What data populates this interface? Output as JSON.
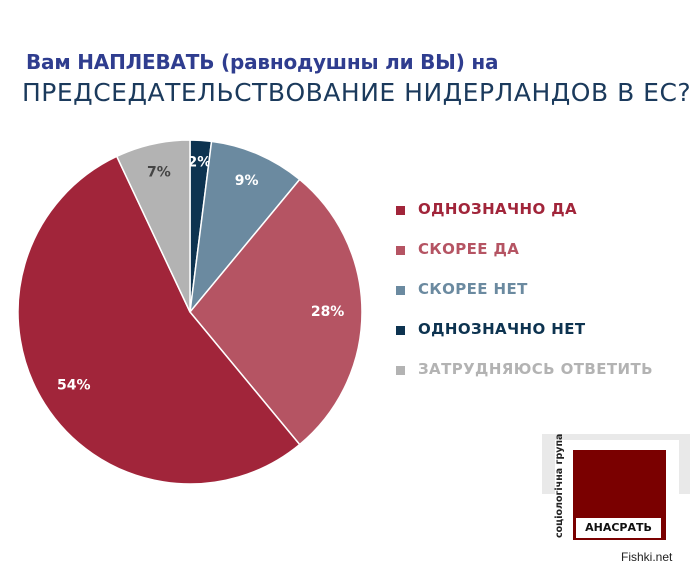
{
  "colors": {
    "definitely_yes": "#a1253a",
    "rather_yes": "#b55463",
    "rather_no": "#6b8aa0",
    "definitely_no": "#0d3350",
    "hard_to_say": "#b3b3b3",
    "label_light": "#ffffff",
    "label_dark": "#444444",
    "logo": "#7a0000"
  },
  "chart_data": {
    "type": "pie",
    "title": "Вам НАПЛЕВАТЬ (равнодушны ли ВЫ) на",
    "subtitle": "ПРЕДСЕДАТЕЛЬСТВОВАНИЕ НИДЕРЛАНДОВ В ЕС?",
    "legend_position": "right",
    "start": "top",
    "direction": "clockwise",
    "slices": [
      {
        "label": "ОДНОЗНАЧНО НЕТ",
        "value": 2,
        "display": "2%",
        "color": "#0d3350"
      },
      {
        "label": "СКОРЕЕ НЕТ",
        "value": 9,
        "display": "9%",
        "color": "#6b8aa0"
      },
      {
        "label": "СКОРЕЕ ДА",
        "value": 28,
        "display": "28%",
        "color": "#b55463"
      },
      {
        "label": "ОДНОЗНАЧНО ДА",
        "value": 54,
        "display": "54%",
        "color": "#a1253a"
      },
      {
        "label": "ЗАТРУДНЯЮСЬ ОТВЕТИТЬ",
        "value": 7,
        "display": "7%",
        "color": "#b3b3b3"
      }
    ],
    "legend": [
      {
        "label": "ОДНОЗНАЧНО ДА",
        "color": "#a1253a"
      },
      {
        "label": "СКОРЕЕ ДА",
        "color": "#b55463"
      },
      {
        "label": "СКОРЕЕ НЕТ",
        "color": "#6b8aa0"
      },
      {
        "label": "ОДНОЗНАЧНО НЕТ",
        "color": "#0d3350"
      },
      {
        "label": "ЗАТРУДНЯЮСЬ ОТВЕТИТЬ",
        "color": "#b3b3b3"
      }
    ]
  },
  "logo": {
    "vertical_text": "соціологічна група",
    "box_text": "АНАСРАТЬ"
  },
  "watermark": "Fishki.net"
}
